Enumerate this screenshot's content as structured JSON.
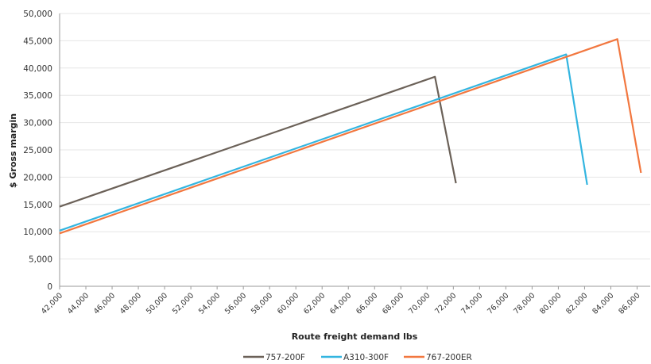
{
  "chart_data": {
    "type": "line",
    "title": "",
    "xlabel": "Route freight demand lbs",
    "ylabel": "$ Gross margin",
    "xlim": [
      42000,
      87000
    ],
    "ylim": [
      0,
      50000
    ],
    "x_ticks": [
      "42,000",
      "44,000",
      "46,000",
      "48,000",
      "50,000",
      "52,000",
      "54,000",
      "56,000",
      "58,000",
      "60,000",
      "62,000",
      "64,000",
      "66,000",
      "68,000",
      "70,000",
      "72,000",
      "74,000",
      "76,000",
      "78,000",
      "80,000",
      "82,000",
      "84,000",
      "86,000"
    ],
    "y_ticks": [
      "0",
      "5,000",
      "10,000",
      "15,000",
      "20,000",
      "25,000",
      "30,000",
      "35,000",
      "40,000",
      "45,000",
      "50,000"
    ],
    "x_tick_values": [
      42000,
      44000,
      46000,
      48000,
      50000,
      52000,
      54000,
      56000,
      58000,
      60000,
      62000,
      64000,
      66000,
      68000,
      70000,
      72000,
      74000,
      76000,
      78000,
      80000,
      82000,
      84000,
      86000
    ],
    "y_tick_values": [
      0,
      5000,
      10000,
      15000,
      20000,
      25000,
      30000,
      35000,
      40000,
      45000,
      50000
    ],
    "grid": "horizontal",
    "legend_position": "bottom",
    "series": [
      {
        "name": "757-200F",
        "color": "#6b6158",
        "points": [
          [
            42000,
            14600
          ],
          [
            70600,
            38400
          ],
          [
            72200,
            18900
          ]
        ]
      },
      {
        "name": "A310-300F",
        "color": "#33b5e0",
        "points": [
          [
            42000,
            10200
          ],
          [
            80600,
            42500
          ],
          [
            82200,
            18600
          ]
        ]
      },
      {
        "name": "767-200ER",
        "color": "#f2773f",
        "points": [
          [
            42000,
            9700
          ],
          [
            84500,
            45300
          ],
          [
            86300,
            20800
          ]
        ]
      }
    ]
  }
}
